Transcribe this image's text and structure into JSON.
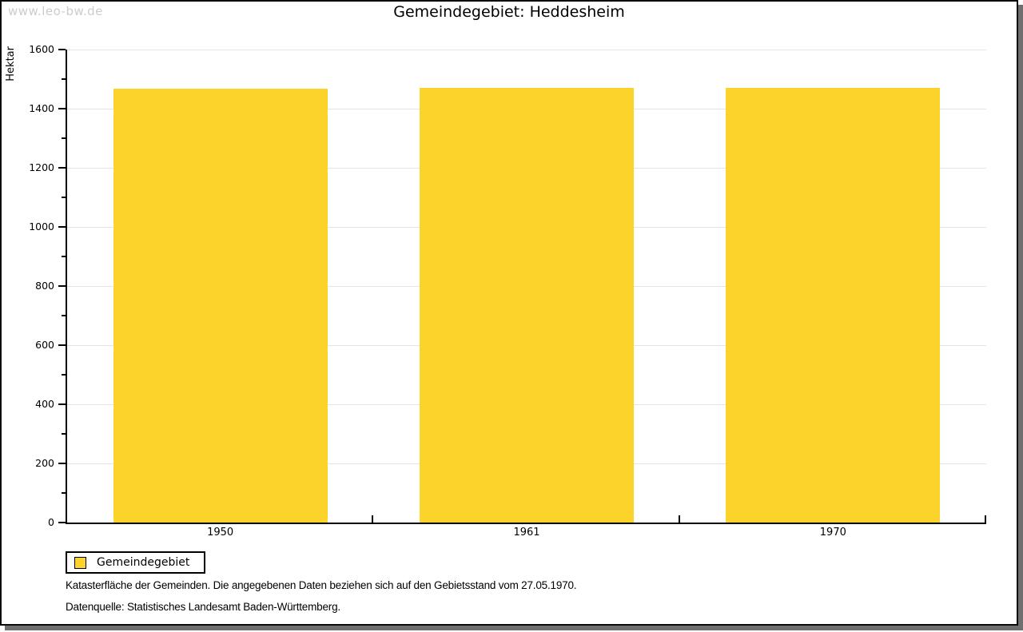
{
  "page": {
    "watermark": "www.leo-bw.de",
    "title": "Gemeindegebiet: Heddesheim",
    "footnote_line1": "Katasterfläche der Gemeinden. Die angegebenen Daten beziehen sich auf den Gebietsstand vom 27.05.1970.",
    "footnote_line2": "Datenquelle: Statistisches Landesamt Baden-Württemberg."
  },
  "legend": {
    "label": "Gemeindegebiet"
  },
  "colors": {
    "bar": "#FCD32B",
    "grid": "#e4e4e4",
    "axis": "#000000",
    "frame_shadow": "#6f6f6f",
    "watermark": "#cccccc"
  },
  "chart_data": {
    "type": "bar",
    "title": "Gemeindegebiet: Heddesheim",
    "categories": [
      "1950",
      "1961",
      "1970"
    ],
    "series": [
      {
        "name": "Gemeindegebiet",
        "values": [
          1468,
          1470,
          1470
        ],
        "color": "#FCD32B"
      }
    ],
    "xlabel": "",
    "ylabel": "Hektar",
    "ylim": [
      0,
      1600
    ],
    "ytick_interval": 200,
    "yminor_tick_interval": 100,
    "grid": "horizontal-major",
    "legend_position": "bottom-left",
    "unit": "Hektar"
  }
}
